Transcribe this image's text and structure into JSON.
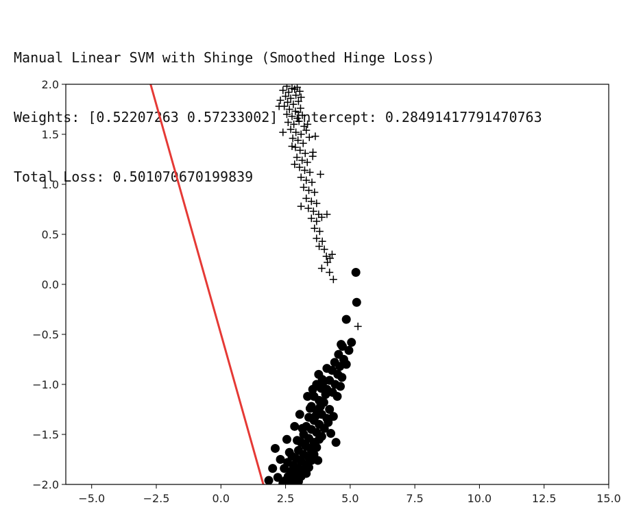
{
  "output": {
    "line1": "Manual Linear SVM with Shinge (Smoothed Hinge Loss)",
    "line2": "Weights: [0.52207263 0.57233002]  Intercept: 0.28491417791470763",
    "line3": "Total Loss: 0.501070670199839"
  },
  "chart_data": {
    "type": "scatter",
    "title": "",
    "xlabel": "",
    "ylabel": "",
    "xlim": [
      -6.0,
      15.0
    ],
    "ylim": [
      -2.0,
      2.0
    ],
    "xticks": [
      -5.0,
      -2.5,
      0.0,
      2.5,
      5.0,
      7.5,
      10.0,
      12.5,
      15.0
    ],
    "xtick_labels": [
      "−5.0",
      "−2.5",
      "0.0",
      "2.5",
      "5.0",
      "7.5",
      "10.0",
      "12.5",
      "15.0"
    ],
    "yticks": [
      2.0,
      1.5,
      1.0,
      0.5,
      0.0,
      -0.5,
      -1.0,
      -1.5,
      -2.0
    ],
    "ytick_labels": [
      "2.0",
      "1.5",
      "1.0",
      "0.5",
      "0.0",
      "−0.5",
      "−1.0",
      "−1.5",
      "−2.0"
    ],
    "grid": false,
    "series": [
      {
        "marker": "plus",
        "color": "#000000",
        "points": [
          [
            2.55,
            1.98
          ],
          [
            2.75,
            1.96
          ],
          [
            2.95,
            1.97
          ],
          [
            2.4,
            1.94
          ],
          [
            2.62,
            1.92
          ],
          [
            2.85,
            1.95
          ],
          [
            3.05,
            1.93
          ],
          [
            2.5,
            1.88
          ],
          [
            2.7,
            1.86
          ],
          [
            2.9,
            1.89
          ],
          [
            3.1,
            1.87
          ],
          [
            2.3,
            1.84
          ],
          [
            2.58,
            1.82
          ],
          [
            2.8,
            1.8
          ],
          [
            3.0,
            1.83
          ],
          [
            2.45,
            1.78
          ],
          [
            2.65,
            1.75
          ],
          [
            2.88,
            1.73
          ],
          [
            3.08,
            1.76
          ],
          [
            2.55,
            1.7
          ],
          [
            2.75,
            1.68
          ],
          [
            2.95,
            1.66
          ],
          [
            3.15,
            1.69
          ],
          [
            2.6,
            1.62
          ],
          [
            2.82,
            1.6
          ],
          [
            3.02,
            1.63
          ],
          [
            3.22,
            1.58
          ],
          [
            2.7,
            1.55
          ],
          [
            2.9,
            1.52
          ],
          [
            3.1,
            1.5
          ],
          [
            3.3,
            1.54
          ],
          [
            2.78,
            1.46
          ],
          [
            2.98,
            1.44
          ],
          [
            3.18,
            1.41
          ],
          [
            3.42,
            1.47
          ],
          [
            2.88,
            1.37
          ],
          [
            3.06,
            1.34
          ],
          [
            3.26,
            1.31
          ],
          [
            3.56,
            1.32
          ],
          [
            2.94,
            1.27
          ],
          [
            3.14,
            1.24
          ],
          [
            3.34,
            1.22
          ],
          [
            3.04,
            1.17
          ],
          [
            3.24,
            1.14
          ],
          [
            3.44,
            1.12
          ],
          [
            3.1,
            1.07
          ],
          [
            3.3,
            1.04
          ],
          [
            3.52,
            1.02
          ],
          [
            3.2,
            0.97
          ],
          [
            3.4,
            0.94
          ],
          [
            3.62,
            0.92
          ],
          [
            3.3,
            0.86
          ],
          [
            3.5,
            0.83
          ],
          [
            3.7,
            0.81
          ],
          [
            3.38,
            0.76
          ],
          [
            3.58,
            0.73
          ],
          [
            3.78,
            0.7
          ],
          [
            3.5,
            0.66
          ],
          [
            3.7,
            0.63
          ],
          [
            3.9,
            0.67
          ],
          [
            3.62,
            0.56
          ],
          [
            3.82,
            0.53
          ],
          [
            3.7,
            0.46
          ],
          [
            3.92,
            0.43
          ],
          [
            3.8,
            0.38
          ],
          [
            4.0,
            0.35
          ],
          [
            4.08,
            0.28
          ],
          [
            4.22,
            0.26
          ],
          [
            4.3,
            0.3
          ],
          [
            4.12,
            0.22
          ],
          [
            3.9,
            0.16
          ],
          [
            4.2,
            0.12
          ],
          [
            4.35,
            0.05
          ],
          [
            5.3,
            -0.42
          ],
          [
            3.35,
            1.6
          ],
          [
            3.65,
            1.48
          ],
          [
            2.25,
            1.78
          ],
          [
            2.4,
            1.52
          ],
          [
            3.85,
            1.1
          ],
          [
            2.75,
            1.38
          ],
          [
            3.55,
            1.28
          ],
          [
            2.85,
            1.2
          ],
          [
            4.1,
            0.7
          ],
          [
            3.1,
            0.78
          ]
        ]
      },
      {
        "marker": "circle",
        "color": "#000000",
        "points": [
          [
            5.22,
            0.12
          ],
          [
            5.25,
            -0.18
          ],
          [
            4.85,
            -0.35
          ],
          [
            5.05,
            -0.58
          ],
          [
            4.7,
            -0.62
          ],
          [
            4.95,
            -0.66
          ],
          [
            4.55,
            -0.7
          ],
          [
            4.75,
            -0.75
          ],
          [
            4.4,
            -0.78
          ],
          [
            4.6,
            -0.82
          ],
          [
            4.85,
            -0.8
          ],
          [
            4.3,
            -0.86
          ],
          [
            4.52,
            -0.9
          ],
          [
            4.68,
            -0.93
          ],
          [
            4.2,
            -0.96
          ],
          [
            4.42,
            -1.0
          ],
          [
            4.62,
            -1.02
          ],
          [
            4.1,
            -1.05
          ],
          [
            4.32,
            -1.08
          ],
          [
            4.5,
            -1.12
          ],
          [
            3.78,
            -0.9
          ],
          [
            3.92,
            -0.95
          ],
          [
            3.7,
            -1.0
          ],
          [
            3.88,
            -1.04
          ],
          [
            4.05,
            -1.1
          ],
          [
            3.6,
            -1.12
          ],
          [
            3.8,
            -1.16
          ],
          [
            3.98,
            -1.18
          ],
          [
            4.2,
            -1.25
          ],
          [
            3.5,
            -1.22
          ],
          [
            3.7,
            -1.26
          ],
          [
            3.9,
            -1.3
          ],
          [
            4.1,
            -1.34
          ],
          [
            3.4,
            -1.33
          ],
          [
            3.6,
            -1.36
          ],
          [
            3.8,
            -1.4
          ],
          [
            4.0,
            -1.44
          ],
          [
            4.35,
            -1.32
          ],
          [
            3.3,
            -1.42
          ],
          [
            3.5,
            -1.45
          ],
          [
            3.7,
            -1.48
          ],
          [
            3.9,
            -1.52
          ],
          [
            4.15,
            -1.38
          ],
          [
            3.2,
            -1.5
          ],
          [
            3.4,
            -1.54
          ],
          [
            3.6,
            -1.58
          ],
          [
            3.8,
            -1.55
          ],
          [
            4.25,
            -1.49
          ],
          [
            3.1,
            -1.58
          ],
          [
            3.3,
            -1.62
          ],
          [
            3.5,
            -1.66
          ],
          [
            3.7,
            -1.63
          ],
          [
            3.0,
            -1.66
          ],
          [
            3.2,
            -1.7
          ],
          [
            3.4,
            -1.73
          ],
          [
            3.6,
            -1.7
          ],
          [
            2.9,
            -1.74
          ],
          [
            3.1,
            -1.77
          ],
          [
            3.3,
            -1.8
          ],
          [
            3.5,
            -1.76
          ],
          [
            2.8,
            -1.81
          ],
          [
            3.0,
            -1.84
          ],
          [
            3.2,
            -1.86
          ],
          [
            3.4,
            -1.83
          ],
          [
            2.7,
            -1.87
          ],
          [
            2.9,
            -1.9
          ],
          [
            3.1,
            -1.92
          ],
          [
            3.3,
            -1.89
          ],
          [
            2.6,
            -1.92
          ],
          [
            2.8,
            -1.95
          ],
          [
            3.0,
            -1.97
          ],
          [
            2.5,
            -1.96
          ],
          [
            2.7,
            -1.99
          ],
          [
            2.4,
            -1.99
          ],
          [
            2.2,
            -1.93
          ],
          [
            2.0,
            -1.84
          ],
          [
            1.85,
            -1.96
          ],
          [
            2.3,
            -1.75
          ],
          [
            2.1,
            -1.64
          ],
          [
            2.55,
            -1.55
          ],
          [
            2.65,
            -1.68
          ],
          [
            2.45,
            -1.84
          ],
          [
            2.95,
            -1.56
          ],
          [
            3.15,
            -1.44
          ],
          [
            3.45,
            -1.24
          ],
          [
            3.55,
            -1.05
          ],
          [
            2.85,
            -1.42
          ],
          [
            3.05,
            -1.3
          ],
          [
            3.35,
            -1.12
          ],
          [
            3.65,
            -1.32
          ],
          [
            3.85,
            -1.22
          ],
          [
            4.45,
            -1.58
          ],
          [
            3.75,
            -1.76
          ],
          [
            3.25,
            -1.6
          ],
          [
            2.58,
            -1.78
          ],
          [
            3.95,
            -0.98
          ],
          [
            4.65,
            -0.6
          ],
          [
            4.1,
            -0.84
          ],
          [
            3.62,
            -1.6
          ],
          [
            2.75,
            -1.72
          ]
        ]
      }
    ],
    "line": {
      "color": "#e53935",
      "points": [
        [
          -2.72,
          2.0
        ],
        [
          1.64,
          -2.0
        ]
      ]
    }
  }
}
